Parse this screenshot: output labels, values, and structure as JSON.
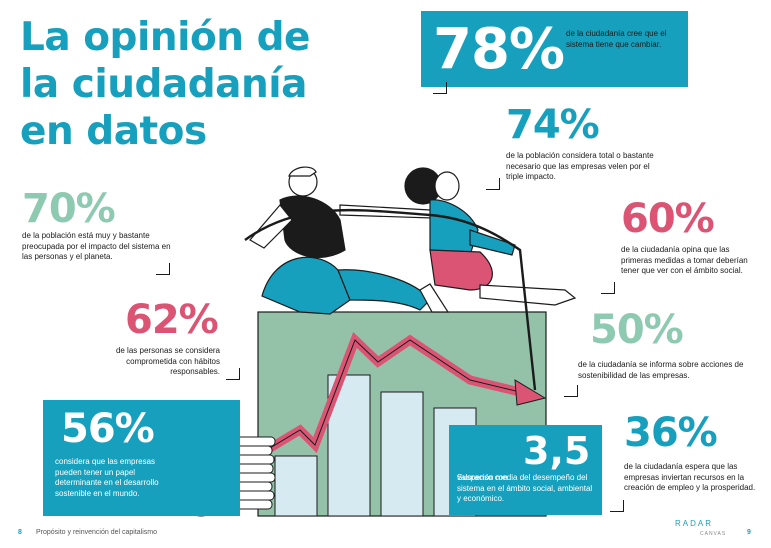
{
  "title": [
    "La opinión de",
    "la ciudadanía",
    "en datos"
  ],
  "stats": {
    "s78": {
      "value": "78%",
      "text": "de la ciudadanía cree que el sistema tiene que cambiar."
    },
    "s74": {
      "value": "74%",
      "text": "de la población considera total o bastante necesario que las empresas velen por el triple impacto."
    },
    "s70": {
      "value": "70%",
      "text": "de la población está muy y bastante preocupada por el impacto del sistema en las personas y el planeta."
    },
    "s60": {
      "value": "60%",
      "text": "de la ciudadanía opina que las primeras medidas a tomar deberían tener que ver con el ámbito social."
    },
    "s62": {
      "value": "62%",
      "text": "de las personas se considera comprometida con hábitos responsables."
    },
    "s50": {
      "value": "50%",
      "text": "de la ciudadanía se informa sobre acciones de sostenibilidad de las empresas."
    },
    "s56": {
      "value": "56%",
      "text": "considera que las empresas pueden tener un papel determinante en el desarrollo sostenible en el mundo."
    },
    "s35": {
      "label": "Suspenso con",
      "value": "3,5",
      "text": "valoración media del desempeño del sistema en el ámbito social, ambiental y económico."
    },
    "s36": {
      "value": "36%",
      "text": "de la ciudadanía espera que las empresas inviertan recursos en la creación de empleo y la prosperidad."
    }
  },
  "footer": {
    "page_left": "8",
    "section": "Propósito y reinvención del capitalismo",
    "logo": "RADAR",
    "logo_sub": "CANVAS",
    "page_right": "9"
  },
  "colors": {
    "teal": "#17a0bd",
    "mint": "#8ec9b1",
    "pink": "#db5474",
    "green_block": "#93c2a9",
    "light_blue": "#d6eaf2"
  }
}
